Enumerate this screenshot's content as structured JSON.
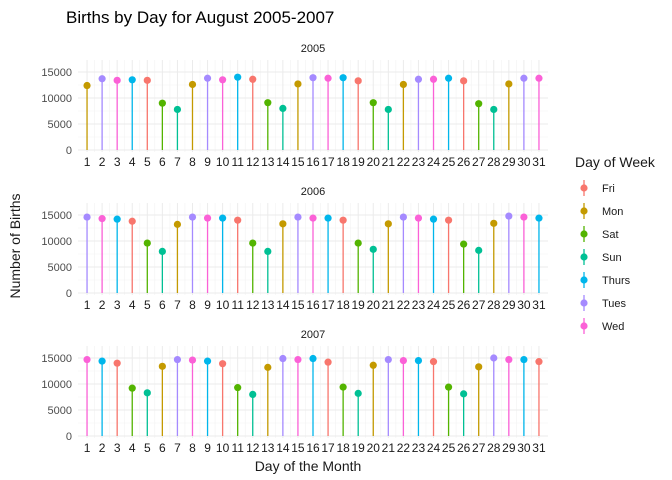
{
  "chart_data": {
    "type": "lollipop",
    "title": "Births by Day for August 2005-2007",
    "xlabel": "Day of the Month",
    "ylabel": "Number of Births",
    "ylim": [
      0,
      15000
    ],
    "yticks": [
      0,
      5000,
      10000,
      15000
    ],
    "categories": [
      "1",
      "2",
      "3",
      "4",
      "5",
      "6",
      "7",
      "8",
      "9",
      "10",
      "11",
      "12",
      "13",
      "14",
      "15",
      "16",
      "17",
      "18",
      "19",
      "20",
      "21",
      "22",
      "23",
      "24",
      "25",
      "26",
      "27",
      "28",
      "29",
      "30",
      "31"
    ],
    "grid": true,
    "legend": {
      "title": "Day of Week",
      "placement": "right",
      "entries": [
        {
          "label": "Fri",
          "color": "#F8766D"
        },
        {
          "label": "Mon",
          "color": "#C49A00"
        },
        {
          "label": "Sat",
          "color": "#53B400"
        },
        {
          "label": "Sun",
          "color": "#00C094"
        },
        {
          "label": "Thurs",
          "color": "#00B6EB"
        },
        {
          "label": "Tues",
          "color": "#A58AFF"
        },
        {
          "label": "Wed",
          "color": "#FB61D7"
        }
      ]
    },
    "panels": [
      {
        "label": "2005",
        "values": [
          12400,
          13700,
          13400,
          13500,
          13400,
          9000,
          7800,
          12600,
          13800,
          13500,
          14000,
          13600,
          9100,
          8000,
          12700,
          13900,
          13800,
          13900,
          13300,
          9100,
          7800,
          12600,
          13600,
          13600,
          13800,
          13300,
          8900,
          7800,
          12700,
          13800,
          13800
        ],
        "day_of_week": [
          "Mon",
          "Tues",
          "Wed",
          "Thurs",
          "Fri",
          "Sat",
          "Sun",
          "Mon",
          "Tues",
          "Wed",
          "Thurs",
          "Fri",
          "Sat",
          "Sun",
          "Mon",
          "Tues",
          "Wed",
          "Thurs",
          "Fri",
          "Sat",
          "Sun",
          "Mon",
          "Tues",
          "Wed",
          "Thurs",
          "Fri",
          "Sat",
          "Sun",
          "Mon",
          "Tues",
          "Wed"
        ]
      },
      {
        "label": "2006",
        "values": [
          14600,
          14300,
          14200,
          13800,
          9600,
          8000,
          13200,
          14600,
          14400,
          14400,
          14000,
          9600,
          8000,
          13300,
          14600,
          14400,
          14400,
          14000,
          9600,
          8400,
          13300,
          14600,
          14400,
          14200,
          14000,
          9400,
          8200,
          13400,
          14800,
          14600,
          14400
        ],
        "day_of_week": [
          "Tues",
          "Wed",
          "Thurs",
          "Fri",
          "Sat",
          "Sun",
          "Mon",
          "Tues",
          "Wed",
          "Thurs",
          "Fri",
          "Sat",
          "Sun",
          "Mon",
          "Tues",
          "Wed",
          "Thurs",
          "Fri",
          "Sat",
          "Sun",
          "Mon",
          "Tues",
          "Wed",
          "Thurs",
          "Fri",
          "Sat",
          "Sun",
          "Mon",
          "Tues",
          "Wed",
          "Thurs"
        ]
      },
      {
        "label": "2007",
        "values": [
          14700,
          14400,
          14000,
          9200,
          8300,
          13400,
          14700,
          14600,
          14400,
          13900,
          9300,
          8000,
          13200,
          14900,
          14700,
          14900,
          14200,
          9400,
          8200,
          13600,
          14700,
          14500,
          14500,
          14300,
          9400,
          8100,
          13300,
          15000,
          14700,
          14700,
          14300
        ],
        "day_of_week": [
          "Wed",
          "Thurs",
          "Fri",
          "Sat",
          "Sun",
          "Mon",
          "Tues",
          "Wed",
          "Thurs",
          "Fri",
          "Sat",
          "Sun",
          "Mon",
          "Tues",
          "Wed",
          "Thurs",
          "Fri",
          "Sat",
          "Sun",
          "Mon",
          "Tues",
          "Wed",
          "Thurs",
          "Fri",
          "Sat",
          "Sun",
          "Mon",
          "Tues",
          "Wed",
          "Thurs",
          "Fri"
        ]
      }
    ]
  }
}
